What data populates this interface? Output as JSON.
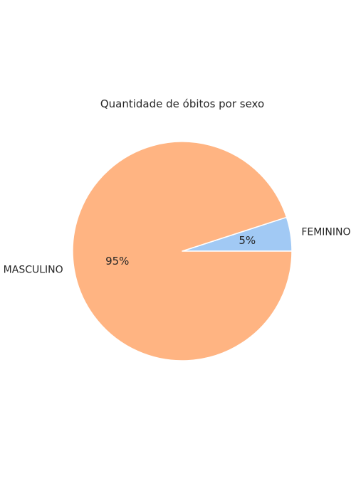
{
  "chart_data": {
    "type": "pie",
    "title": "Quantidade de óbitos por sexo",
    "categories": [
      "FEMININO",
      "MASCULINO"
    ],
    "values": [
      5,
      95
    ],
    "percent_labels": [
      "5%",
      "95%"
    ],
    "colors": [
      "#a1c9f4",
      "#ffb482"
    ],
    "start_angle_deg": 0,
    "direction": "counterclockwise",
    "legend": "none"
  }
}
